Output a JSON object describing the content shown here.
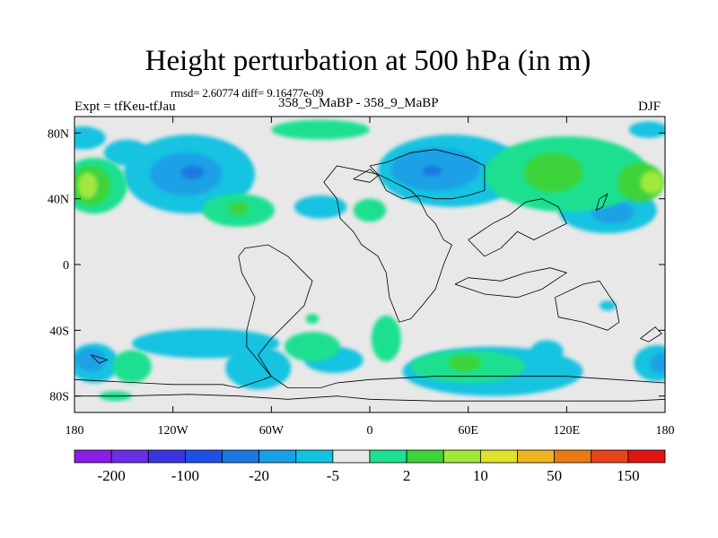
{
  "chart_data": {
    "type": "heatmap",
    "title": "Height perturbation at 500 hPa (in m)",
    "stats": "rmsd= 2.60774 diff= 9.16477e-09",
    "left_label": "Expt = tfKeu-tfJau",
    "center_label": "358_9_MaBP - 358_9_MaBP",
    "right_label": "DJF",
    "xlim": [
      -180,
      180
    ],
    "ylim": [
      -90,
      90
    ],
    "x_ticks": [
      {
        "value": -180,
        "label": "180"
      },
      {
        "value": -120,
        "label": "120W"
      },
      {
        "value": -60,
        "label": "60W"
      },
      {
        "value": 0,
        "label": "0"
      },
      {
        "value": 60,
        "label": "60E"
      },
      {
        "value": 120,
        "label": "120E"
      },
      {
        "value": 180,
        "label": "180"
      }
    ],
    "y_ticks": [
      {
        "value": 80,
        "label": "80N"
      },
      {
        "value": 40,
        "label": "40N"
      },
      {
        "value": 0,
        "label": "0"
      },
      {
        "value": -40,
        "label": "40S"
      },
      {
        "value": -80,
        "label": "80S"
      }
    ],
    "colorbar": {
      "colors": [
        "#8a1de6",
        "#6a2ee6",
        "#3a35e0",
        "#1f4fe6",
        "#1a78e0",
        "#1aa0e6",
        "#12c3e0",
        "#e8e8e8",
        "#1ee090",
        "#3cd43a",
        "#a0e83c",
        "#e0e22c",
        "#f0b41e",
        "#ec7a14",
        "#e8441a",
        "#e01414"
      ],
      "labels": [
        {
          "boundary": 1,
          "text": "-200"
        },
        {
          "boundary": 3,
          "text": "-100"
        },
        {
          "boundary": 5,
          "text": "-20"
        },
        {
          "boundary": 7,
          "text": "-5"
        },
        {
          "boundary": 9,
          "text": "2"
        },
        {
          "boundary": 11,
          "text": "10"
        },
        {
          "boundary": 13,
          "text": "50"
        },
        {
          "boundary": 15,
          "text": "150"
        }
      ]
    },
    "fill_regions": [
      {
        "name": "sky-anom",
        "color": "#12c3e0",
        "lon": -175,
        "lat": 77,
        "rx": 14,
        "ry": 7
      },
      {
        "name": "sky-anom",
        "color": "#12c3e0",
        "lon": -148,
        "lat": 68,
        "rx": 14,
        "ry": 8
      },
      {
        "name": "sky-anom",
        "color": "#12c3e0",
        "lon": -110,
        "lat": 55,
        "rx": 40,
        "ry": 24
      },
      {
        "name": "sky-anom",
        "color": "#12c3e0",
        "lon": 50,
        "lat": 57,
        "rx": 45,
        "ry": 22
      },
      {
        "name": "sky-anom",
        "color": "#12c3e0",
        "lon": 145,
        "lat": 33,
        "rx": 30,
        "ry": 14
      },
      {
        "name": "sky-anom",
        "color": "#12c3e0",
        "lon": -30,
        "lat": 35,
        "rx": 16,
        "ry": 7
      },
      {
        "name": "sky-anom",
        "color": "#12c3e0",
        "lon": 170,
        "lat": 82,
        "rx": 12,
        "ry": 5
      },
      {
        "name": "sky-anom",
        "color": "#12c3e0",
        "lon": -100,
        "lat": -48,
        "rx": 45,
        "ry": 9
      },
      {
        "name": "sky-anom",
        "color": "#12c3e0",
        "lon": -68,
        "lat": -63,
        "rx": 20,
        "ry": 13
      },
      {
        "name": "sky-anom",
        "color": "#12c3e0",
        "lon": -168,
        "lat": -60,
        "rx": 15,
        "ry": 12
      },
      {
        "name": "sky-anom",
        "color": "#12c3e0",
        "lon": -22,
        "lat": -58,
        "rx": 18,
        "ry": 8
      },
      {
        "name": "sky-anom",
        "color": "#12c3e0",
        "lon": 75,
        "lat": -65,
        "rx": 55,
        "ry": 15
      },
      {
        "name": "sky-anom",
        "color": "#12c3e0",
        "lon": 108,
        "lat": -53,
        "rx": 10,
        "ry": 7
      },
      {
        "name": "sky-anom",
        "color": "#12c3e0",
        "lon": 175,
        "lat": -60,
        "rx": 14,
        "ry": 11
      },
      {
        "name": "sky-anom",
        "color": "#12c3e0",
        "lon": 145,
        "lat": -25,
        "rx": 5,
        "ry": 3
      },
      {
        "name": "blue-anom",
        "color": "#1aa0e6",
        "lon": -112,
        "lat": 55,
        "rx": 22,
        "ry": 13
      },
      {
        "name": "blue-anom",
        "color": "#1aa0e6",
        "lon": 40,
        "lat": 58,
        "rx": 27,
        "ry": 13
      },
      {
        "name": "blue-anom",
        "color": "#1aa0e6",
        "lon": 148,
        "lat": 32,
        "rx": 13,
        "ry": 7
      },
      {
        "name": "blue-anom",
        "color": "#1aa0e6",
        "lon": -170,
        "lat": -58,
        "rx": 9,
        "ry": 7
      },
      {
        "name": "blue-anom",
        "color": "#1aa0e6",
        "lon": 178,
        "lat": -60,
        "rx": 7,
        "ry": 6
      },
      {
        "name": "deep-anom",
        "color": "#1a78e0",
        "lon": -108,
        "lat": 56,
        "rx": 7,
        "ry": 4
      },
      {
        "name": "deep-anom",
        "color": "#1a78e0",
        "lon": 38,
        "lat": 57,
        "rx": 6,
        "ry": 3
      },
      {
        "name": "mint-anom",
        "color": "#1ee090",
        "lon": -168,
        "lat": 48,
        "rx": 20,
        "ry": 17
      },
      {
        "name": "mint-anom",
        "color": "#1ee090",
        "lon": 120,
        "lat": 55,
        "rx": 50,
        "ry": 23
      },
      {
        "name": "mint-anom",
        "color": "#1ee090",
        "lon": -80,
        "lat": 33,
        "rx": 22,
        "ry": 10
      },
      {
        "name": "mint-anom",
        "color": "#1ee090",
        "lon": -30,
        "lat": 82,
        "rx": 30,
        "ry": 6
      },
      {
        "name": "mint-anom",
        "color": "#1ee090",
        "lon": 0,
        "lat": 33,
        "rx": 10,
        "ry": 7
      },
      {
        "name": "mint-anom",
        "color": "#1ee090",
        "lon": -145,
        "lat": -62,
        "rx": 12,
        "ry": 10
      },
      {
        "name": "mint-anom",
        "color": "#1ee090",
        "lon": -35,
        "lat": -50,
        "rx": 17,
        "ry": 9
      },
      {
        "name": "mint-anom",
        "color": "#1ee090",
        "lon": 10,
        "lat": -45,
        "rx": 9,
        "ry": 14
      },
      {
        "name": "mint-anom",
        "color": "#1ee090",
        "lon": 60,
        "lat": -62,
        "rx": 35,
        "ry": 10
      },
      {
        "name": "mint-anom",
        "color": "#1ee090",
        "lon": -155,
        "lat": -80,
        "rx": 10,
        "ry": 3
      },
      {
        "name": "mint-anom",
        "color": "#1ee090",
        "lon": -35,
        "lat": -33,
        "rx": 4,
        "ry": 3
      },
      {
        "name": "green-anom",
        "color": "#3cd43a",
        "lon": -170,
        "lat": 48,
        "rx": 12,
        "ry": 12
      },
      {
        "name": "green-anom",
        "color": "#3cd43a",
        "lon": 112,
        "lat": 56,
        "rx": 18,
        "ry": 12
      },
      {
        "name": "green-anom",
        "color": "#3cd43a",
        "lon": 165,
        "lat": 50,
        "rx": 14,
        "ry": 12
      },
      {
        "name": "green-anom",
        "color": "#3cd43a",
        "lon": 58,
        "lat": -60,
        "rx": 10,
        "ry": 5
      },
      {
        "name": "green-anom",
        "color": "#3cd43a",
        "lon": -80,
        "lat": 34,
        "rx": 6,
        "ry": 4
      },
      {
        "name": "lime-anom",
        "color": "#a0e83c",
        "lon": -172,
        "lat": 48,
        "rx": 6,
        "ry": 8
      },
      {
        "name": "lime-anom",
        "color": "#a0e83c",
        "lon": 172,
        "lat": 50,
        "rx": 7,
        "ry": 7
      }
    ],
    "coastlines": [
      [
        [
          -180,
          -70
        ],
        [
          -140,
          -72
        ],
        [
          -120,
          -73
        ],
        [
          -90,
          -73
        ],
        [
          -80,
          -75
        ],
        [
          -65,
          -70
        ],
        [
          -60,
          -68
        ],
        [
          -50,
          -75
        ],
        [
          -30,
          -75
        ],
        [
          -20,
          -72
        ],
        [
          0,
          -70
        ],
        [
          40,
          -68
        ],
        [
          80,
          -68
        ],
        [
          120,
          -68
        ],
        [
          150,
          -70
        ],
        [
          180,
          -72
        ]
      ],
      [
        [
          -180,
          -80
        ],
        [
          -150,
          -80
        ],
        [
          -110,
          -79
        ],
        [
          -80,
          -80
        ],
        [
          -50,
          -82
        ],
        [
          -20,
          -80
        ],
        [
          0,
          -82
        ],
        [
          40,
          -83
        ],
        [
          100,
          -83
        ],
        [
          160,
          -83
        ],
        [
          180,
          -82
        ]
      ],
      [
        [
          -60,
          -68
        ],
        [
          -75,
          -50
        ],
        [
          -75,
          -40
        ],
        [
          -70,
          -20
        ],
        [
          -78,
          -5
        ],
        [
          -80,
          5
        ],
        [
          -76,
          10
        ],
        [
          -62,
          12
        ],
        [
          -50,
          5
        ],
        [
          -40,
          -5
        ],
        [
          -35,
          -10
        ],
        [
          -40,
          -25
        ],
        [
          -50,
          -35
        ],
        [
          -60,
          -45
        ],
        [
          -68,
          -55
        ],
        [
          -60,
          -68
        ]
      ],
      [
        [
          -28,
          50
        ],
        [
          -20,
          40
        ],
        [
          -18,
          28
        ],
        [
          -10,
          20
        ],
        [
          -5,
          12
        ],
        [
          5,
          5
        ],
        [
          10,
          -5
        ],
        [
          12,
          -20
        ],
        [
          18,
          -35
        ],
        [
          25,
          -33
        ],
        [
          32,
          -25
        ],
        [
          40,
          -15
        ],
        [
          45,
          0
        ],
        [
          50,
          12
        ],
        [
          45,
          15
        ],
        [
          40,
          25
        ],
        [
          35,
          30
        ],
        [
          30,
          40
        ],
        [
          25,
          45
        ],
        [
          15,
          50
        ],
        [
          5,
          55
        ],
        [
          -10,
          58
        ],
        [
          -20,
          60
        ],
        [
          -28,
          50
        ]
      ],
      [
        [
          0,
          60
        ],
        [
          5,
          55
        ],
        [
          10,
          45
        ],
        [
          20,
          40
        ],
        [
          30,
          42
        ],
        [
          40,
          40
        ],
        [
          50,
          40
        ],
        [
          60,
          42
        ],
        [
          70,
          45
        ],
        [
          70,
          60
        ],
        [
          60,
          65
        ],
        [
          40,
          70
        ],
        [
          25,
          68
        ],
        [
          10,
          62
        ],
        [
          0,
          60
        ]
      ],
      [
        [
          60,
          15
        ],
        [
          70,
          5
        ],
        [
          80,
          10
        ],
        [
          90,
          20
        ],
        [
          100,
          15
        ],
        [
          110,
          20
        ],
        [
          120,
          25
        ],
        [
          115,
          35
        ],
        [
          105,
          40
        ],
        [
          95,
          38
        ],
        [
          85,
          30
        ],
        [
          75,
          25
        ],
        [
          60,
          15
        ]
      ],
      [
        [
          52,
          -12
        ],
        [
          60,
          -8
        ],
        [
          80,
          -10
        ],
        [
          95,
          -5
        ],
        [
          110,
          -2
        ],
        [
          120,
          -5
        ],
        [
          105,
          -15
        ],
        [
          90,
          -20
        ],
        [
          70,
          -18
        ],
        [
          52,
          -12
        ]
      ],
      [
        [
          113,
          -20
        ],
        [
          130,
          -12
        ],
        [
          140,
          -10
        ],
        [
          150,
          -25
        ],
        [
          152,
          -35
        ],
        [
          145,
          -40
        ],
        [
          130,
          -35
        ],
        [
          115,
          -32
        ],
        [
          113,
          -20
        ]
      ],
      [
        [
          140,
          40
        ],
        [
          145,
          43
        ],
        [
          142,
          35
        ],
        [
          138,
          33
        ],
        [
          140,
          40
        ]
      ],
      [
        [
          165,
          -45
        ],
        [
          174,
          -38
        ],
        [
          178,
          -42
        ],
        [
          170,
          -47
        ],
        [
          165,
          -45
        ]
      ],
      [
        [
          -10,
          52
        ],
        [
          0,
          58
        ],
        [
          5,
          54
        ],
        [
          0,
          50
        ],
        [
          -10,
          52
        ]
      ],
      [
        [
          -170,
          -55
        ],
        [
          -165,
          -60
        ],
        [
          -160,
          -58
        ],
        [
          -170,
          -55
        ]
      ]
    ]
  }
}
